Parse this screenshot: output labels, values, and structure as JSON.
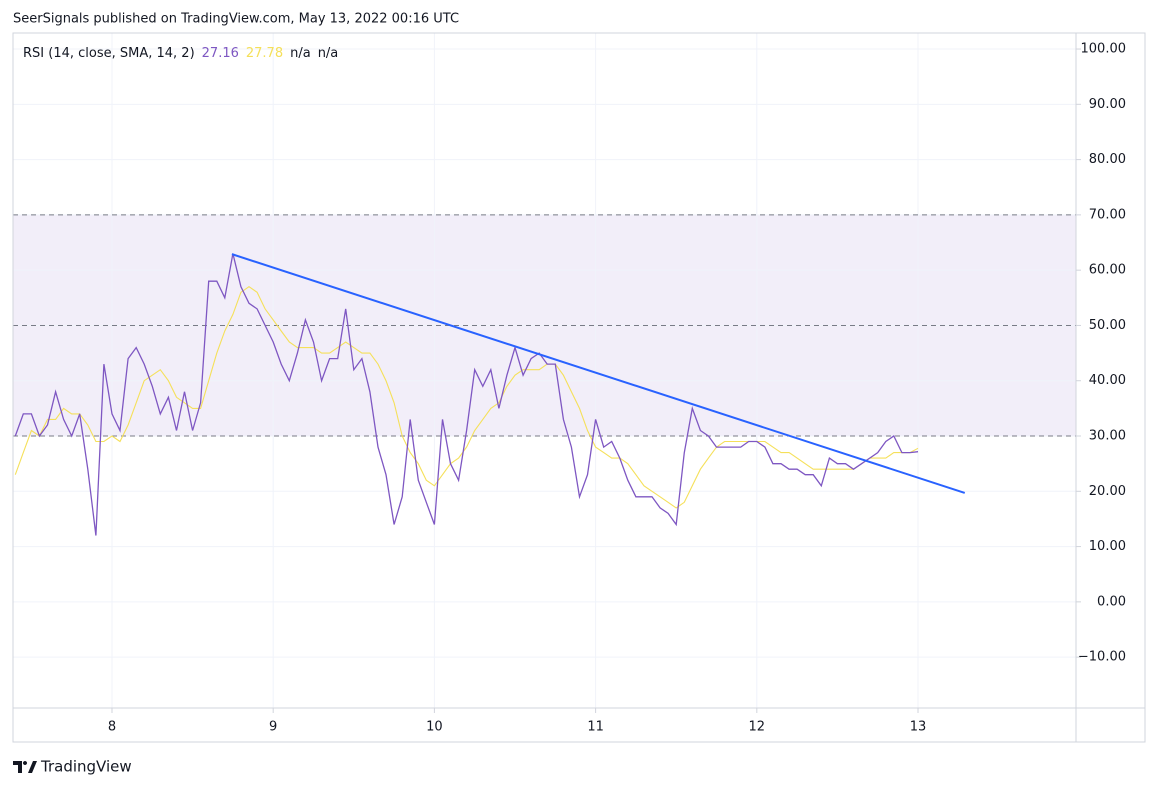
{
  "header": "SeerSignals published on TradingView.com, May 13, 2022 00:16 UTC",
  "footer": "TradingView",
  "chart_data": {
    "type": "line",
    "title": "RSI (14, close, SMA, 14, 2)",
    "legend_extra": [
      "n/a",
      "n/a"
    ],
    "x": [
      7.4,
      7.45,
      7.5,
      7.55,
      7.6,
      7.65,
      7.7,
      7.75,
      7.8,
      7.85,
      7.9,
      7.95,
      8.0,
      8.05,
      8.1,
      8.15,
      8.2,
      8.25,
      8.3,
      8.35,
      8.4,
      8.45,
      8.5,
      8.55,
      8.6,
      8.65,
      8.7,
      8.75,
      8.8,
      8.85,
      8.9,
      8.95,
      9.0,
      9.05,
      9.1,
      9.15,
      9.2,
      9.25,
      9.3,
      9.35,
      9.4,
      9.45,
      9.5,
      9.55,
      9.6,
      9.65,
      9.7,
      9.75,
      9.8,
      9.85,
      9.9,
      9.95,
      10.0,
      10.05,
      10.1,
      10.15,
      10.2,
      10.25,
      10.3,
      10.35,
      10.4,
      10.45,
      10.5,
      10.55,
      10.6,
      10.65,
      10.7,
      10.75,
      10.8,
      10.85,
      10.9,
      10.95,
      11.0,
      11.05,
      11.1,
      11.15,
      11.2,
      11.25,
      11.3,
      11.35,
      11.4,
      11.45,
      11.5,
      11.55,
      11.6,
      11.65,
      11.7,
      11.75,
      11.8,
      11.85,
      11.9,
      11.95,
      12.0,
      12.05,
      12.1,
      12.15,
      12.2,
      12.25,
      12.3,
      12.35,
      12.4,
      12.45,
      12.5,
      12.55,
      12.6,
      12.65,
      12.7,
      12.75,
      12.8,
      12.85,
      12.9,
      12.95,
      13.0
    ],
    "series": [
      {
        "name": "RSI",
        "color": "#7e57c2",
        "values": [
          30,
          34,
          34,
          30,
          32,
          38,
          33,
          30,
          34,
          24,
          12,
          43,
          34,
          31,
          44,
          46,
          43,
          39,
          34,
          37,
          31,
          38,
          31,
          36,
          58,
          58,
          55,
          63,
          57,
          54,
          53,
          50,
          47,
          43,
          40,
          45,
          51,
          47,
          40,
          44,
          44,
          53,
          42,
          44,
          38,
          28,
          23,
          14,
          19,
          33,
          22,
          18,
          14,
          33,
          25,
          22,
          31,
          42,
          39,
          42,
          35,
          41,
          46,
          41,
          44,
          45,
          43,
          43,
          33,
          28,
          19,
          23,
          33,
          28,
          29,
          26,
          22,
          19,
          19,
          19,
          17,
          16,
          14,
          27,
          35,
          31,
          30,
          28,
          28,
          28,
          28,
          29,
          29,
          28,
          25,
          25,
          24,
          24,
          23,
          23,
          21,
          26,
          25,
          25,
          24,
          25,
          26,
          27,
          29,
          30,
          27,
          27,
          27.16
        ]
      },
      {
        "name": "SMA",
        "color": "#f5e05a",
        "values": [
          23,
          27,
          31,
          30,
          33,
          33,
          35,
          34,
          34,
          32,
          29,
          29,
          30,
          29,
          32,
          36,
          40,
          41,
          42,
          40,
          37,
          36,
          35,
          35,
          40,
          45,
          49,
          52,
          56,
          57,
          56,
          53,
          51,
          49,
          47,
          46,
          46,
          46,
          45,
          45,
          46,
          47,
          46,
          45,
          45,
          43,
          40,
          36,
          30,
          27,
          25,
          22,
          21,
          23,
          25,
          26,
          28,
          31,
          33,
          35,
          36,
          39,
          41,
          42,
          42,
          42,
          43,
          43,
          41,
          38,
          35,
          31,
          28,
          27,
          26,
          26,
          25,
          23,
          21,
          20,
          19,
          18,
          17,
          18,
          21,
          24,
          26,
          28,
          29,
          29,
          29,
          29,
          29,
          29,
          28,
          27,
          27,
          26,
          25,
          24,
          24,
          24,
          24,
          24,
          24,
          25,
          26,
          26,
          26,
          27,
          27,
          27,
          27.78
        ]
      }
    ],
    "trendline": {
      "x": [
        8.744,
        13.29
      ],
      "y": [
        62.9,
        19.7
      ],
      "color": "#2962ff"
    },
    "bands": {
      "upper": 70,
      "middle": 50,
      "lower": 30,
      "fill": "#7e57c2",
      "line": "#787b86"
    },
    "xlim": [
      7.386,
      13.98
    ],
    "xticks": [
      8,
      9,
      10,
      11,
      12,
      13
    ],
    "ylim": [
      -19.2,
      102.9
    ],
    "yticks": [
      {
        "value": -10,
        "label": "−10.00"
      },
      {
        "value": 0,
        "label": "0.00"
      },
      {
        "value": 10,
        "label": "10.00"
      },
      {
        "value": 20,
        "label": "20.00"
      },
      {
        "value": 30,
        "label": "30.00"
      },
      {
        "value": 40,
        "label": "40.00"
      },
      {
        "value": 50,
        "label": "50.00"
      },
      {
        "value": 60,
        "label": "60.00"
      },
      {
        "value": 70,
        "label": "70.00"
      },
      {
        "value": 80,
        "label": "80.00"
      },
      {
        "value": 90,
        "label": "90.00"
      },
      {
        "value": 100,
        "label": "100.00"
      }
    ],
    "grid": true
  }
}
